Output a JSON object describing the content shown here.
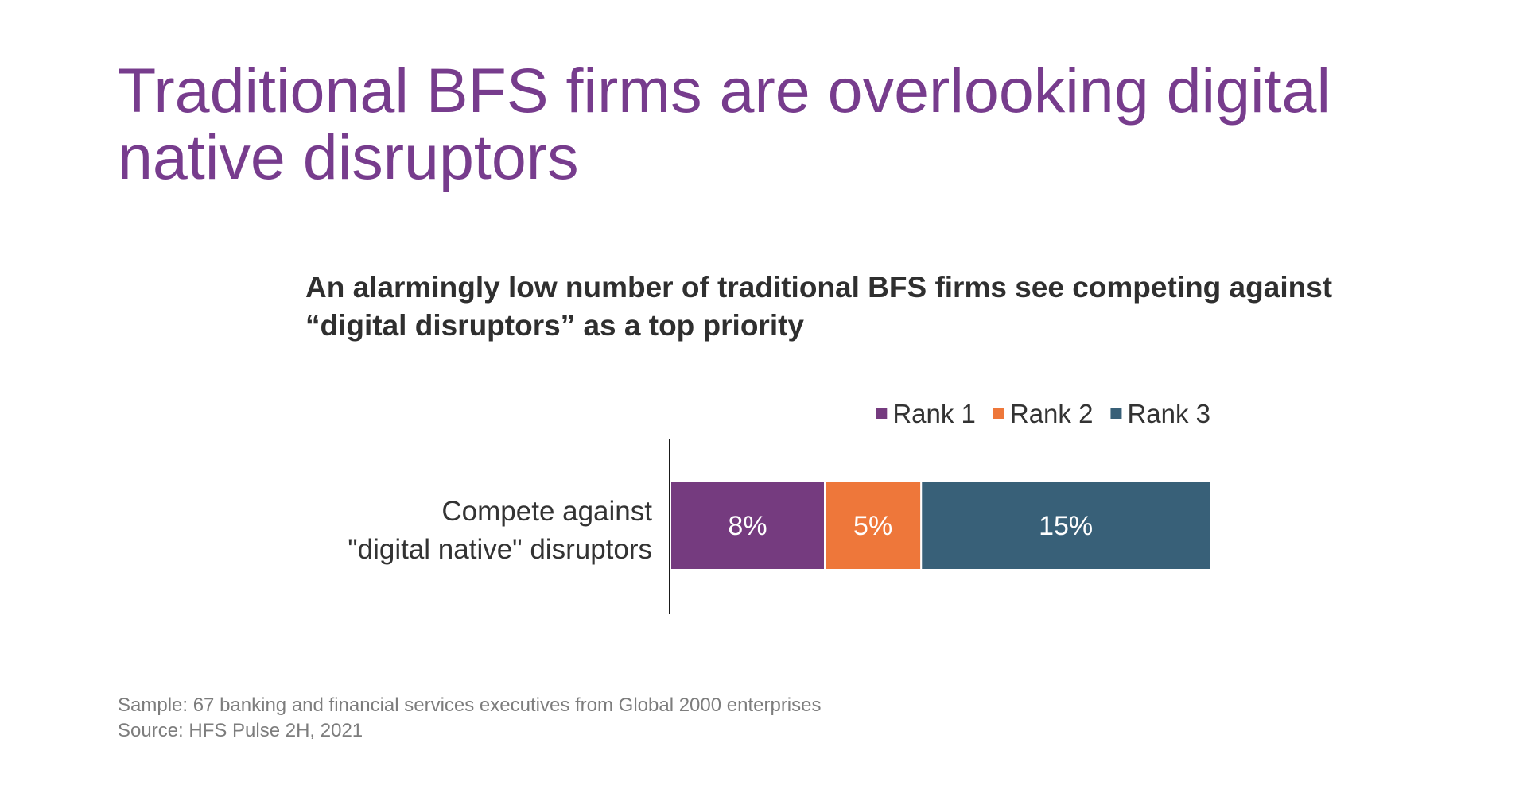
{
  "slide": {
    "title": "Traditional BFS firms are overlooking digital native disruptors",
    "sample_note": "Sample: 67 banking and financial services executives from Global 2000 enterprises",
    "source_note": "Source: HFS Pulse 2H, 2021"
  },
  "chart_data": {
    "type": "bar",
    "orientation": "horizontal",
    "stacked": true,
    "title": "An alarmingly low number of traditional BFS firms see competing against “digital disruptors” as a top priority",
    "categories": [
      "Compete against \"digital native\" disruptors"
    ],
    "category_lines": [
      "Compete against",
      "\"digital native\" disruptors"
    ],
    "unit": "%",
    "series": [
      {
        "name": "Rank 1",
        "values": [
          8
        ],
        "color": "#753b7f"
      },
      {
        "name": "Rank 2",
        "values": [
          5
        ],
        "color": "#ee773a"
      },
      {
        "name": "Rank 3",
        "values": [
          15
        ],
        "color": "#386078"
      }
    ],
    "xlim": [
      0,
      28
    ],
    "grid": false,
    "legend": "top-right",
    "data_labels": true
  }
}
